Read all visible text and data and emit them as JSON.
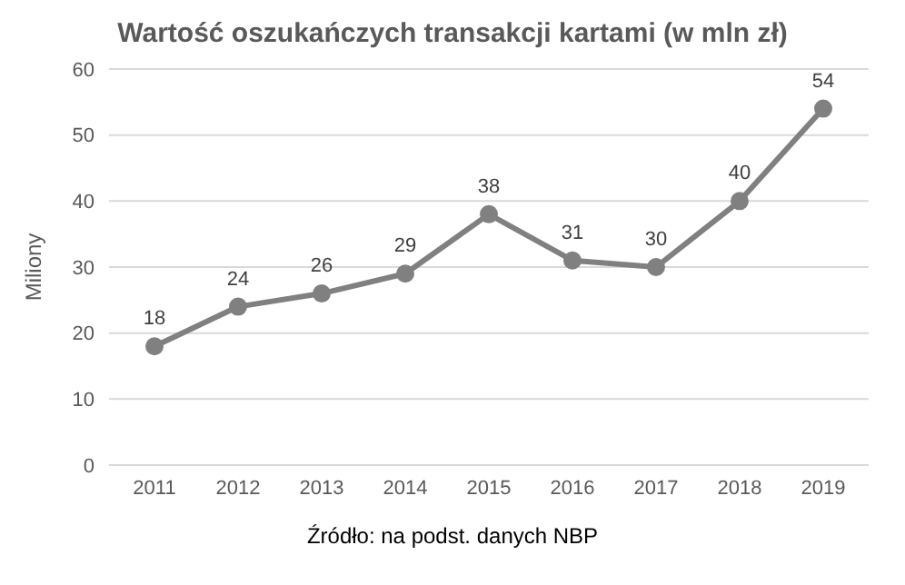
{
  "chart_data": {
    "type": "line",
    "title": "Wartość oszukańczych transakcji kartami (w mln zł)",
    "ylabel": "Miliony",
    "annotations": [
      "Źródło: na podst. danych NBP"
    ],
    "categories": [
      "2011",
      "2012",
      "2013",
      "2014",
      "2015",
      "2016",
      "2017",
      "2018",
      "2019"
    ],
    "series": [
      {
        "color": "#808080",
        "values": [
          18,
          24,
          26,
          29,
          38,
          31,
          30,
          40,
          54
        ]
      }
    ],
    "ylim": [
      0,
      60
    ],
    "yticks": [
      0,
      10,
      20,
      30,
      40,
      50,
      60
    ],
    "grid": "y",
    "marker": "circle",
    "line_style": "solid",
    "data_labels": true
  }
}
